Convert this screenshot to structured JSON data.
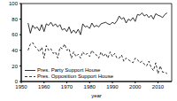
{
  "chart_data": {
    "type": "line",
    "x_label": "year",
    "x": [
      1953,
      1954,
      1955,
      1956,
      1957,
      1958,
      1959,
      1960,
      1961,
      1962,
      1963,
      1964,
      1965,
      1966,
      1967,
      1968,
      1969,
      1970,
      1971,
      1972,
      1973,
      1974,
      1975,
      1976,
      1977,
      1978,
      1979,
      1980,
      1981,
      1982,
      1983,
      1984,
      1985,
      1986,
      1987,
      1988,
      1989,
      1990,
      1991,
      1992,
      1993,
      1994,
      1995,
      1996,
      1997,
      1998,
      1999,
      2000,
      2001,
      2002,
      2003,
      2004,
      2005,
      2006,
      2007,
      2008,
      2009,
      2010,
      2011,
      2012,
      2013,
      2014
    ],
    "series": [
      {
        "name": "Pres. Party Support House",
        "color": "#000000",
        "line_style": "solid",
        "values": [
          75,
          62,
          72,
          68,
          70,
          65,
          73,
          64,
          74,
          72,
          76,
          71,
          74,
          70,
          73,
          66,
          68,
          64,
          70,
          62,
          66,
          62,
          67,
          60,
          74,
          70,
          71,
          68,
          75,
          70,
          72,
          70,
          74,
          75,
          76,
          74,
          73,
          76,
          74,
          78,
          84,
          80,
          82,
          75,
          80,
          78,
          82,
          77,
          86,
          85,
          88,
          84,
          86,
          82,
          85,
          80,
          87,
          85,
          84,
          82,
          86,
          88
        ]
      },
      {
        "name": "Pres. Opposition Support House",
        "color": "#000000",
        "line_style": "dashed",
        "values": [
          40,
          48,
          50,
          45,
          42,
          38,
          44,
          30,
          46,
          40,
          42,
          36,
          38,
          30,
          44,
          42,
          48,
          40,
          42,
          30,
          38,
          32,
          35,
          30,
          38,
          34,
          36,
          32,
          40,
          36,
          34,
          30,
          38,
          32,
          36,
          30,
          38,
          32,
          36,
          30,
          30,
          34,
          26,
          30,
          28,
          26,
          24,
          30,
          28,
          24,
          26,
          22,
          20,
          26,
          18,
          14,
          24,
          10,
          20,
          12,
          12,
          10
        ]
      }
    ],
    "xlim": [
      1950,
      2016
    ],
    "xticks": [
      1950,
      1960,
      1970,
      1980,
      1990,
      2000,
      2010
    ],
    "ylim": [
      0,
      100
    ],
    "yticks": [
      0,
      20,
      40,
      60,
      80,
      100
    ],
    "grid": false,
    "legend": "lower left"
  }
}
